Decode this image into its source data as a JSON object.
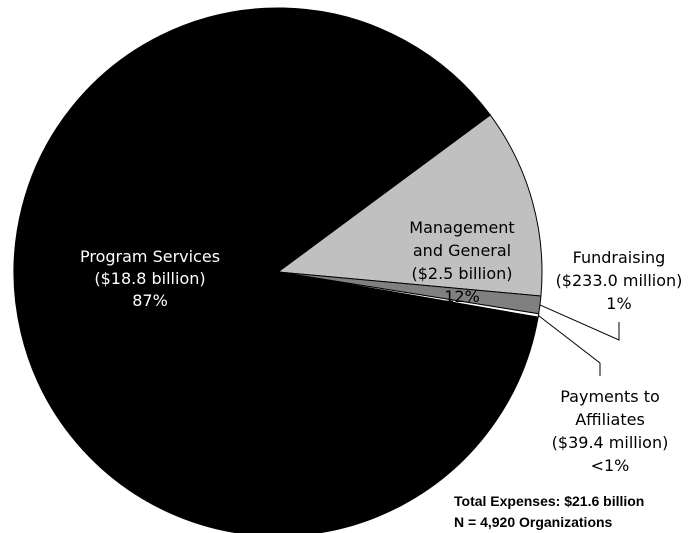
{
  "chart_data": {
    "type": "pie",
    "slices": [
      {
        "label_lines": [
          "Program Services",
          "($18.8 billion)",
          "87%"
        ],
        "value": 18.8,
        "color": "#000000",
        "text_color": "#ffffff"
      },
      {
        "label_lines": [
          "Management",
          "and General",
          "($2.5 billion)",
          "12%"
        ],
        "value": 2.5,
        "color": "#c0c0c0",
        "text_color": "#000000"
      },
      {
        "label_lines": [
          "Fundraising",
          "($233.0 million)",
          "1%"
        ],
        "value": 0.233,
        "color": "#808080",
        "text_color": "#000000"
      },
      {
        "label_lines": [
          "Payments to",
          "Affiliates",
          "($39.4 million)",
          "<1%"
        ],
        "value": 0.0394,
        "color": "#ffffff",
        "text_color": "#000000"
      }
    ],
    "total_label": "Total Expenses: $21.6 billion",
    "n_label": "N = 4,920 Organizations"
  }
}
